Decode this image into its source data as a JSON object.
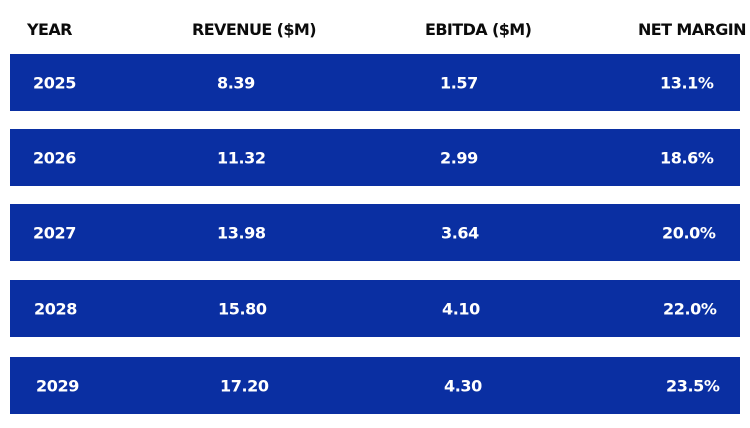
{
  "chart_data": {
    "type": "table",
    "columns": [
      "YEAR",
      "REVENUE ($M)",
      "EBITDA ($M)",
      "NET MARGIN"
    ],
    "rows": [
      [
        "2025",
        "8.39",
        "1.57",
        "13.1%"
      ],
      [
        "2026",
        "11.32",
        "2.99",
        "18.6%"
      ],
      [
        "2027",
        "13.98",
        "3.64",
        "20.0%"
      ],
      [
        "2028",
        "15.80",
        "4.10",
        "22.0%"
      ],
      [
        "2029",
        "17.20",
        "4.30",
        "23.5%"
      ]
    ]
  },
  "colors": {
    "row_background": "#0a2fa2",
    "row_text": "#ffffff",
    "header_text": "#0b0b0b"
  }
}
